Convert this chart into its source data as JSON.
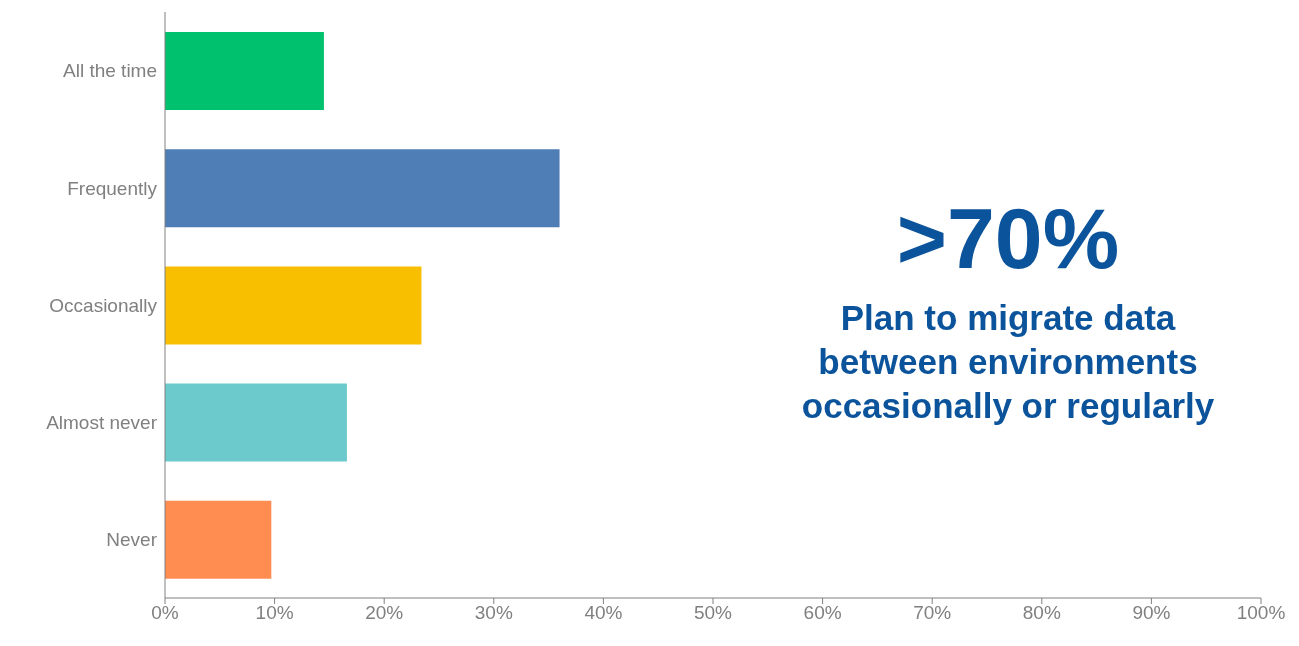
{
  "chart_data": {
    "type": "bar",
    "orientation": "horizontal",
    "categories": [
      "All the time",
      "Frequently",
      "Occasionally",
      "Almost never",
      "Never"
    ],
    "values": [
      14.5,
      36,
      23.4,
      16.6,
      9.7
    ],
    "colors": [
      "#00c16e",
      "#4f7db5",
      "#f7bf00",
      "#6ccacc",
      "#ff8c50"
    ],
    "xlim": [
      0,
      100
    ],
    "xticks": [
      {
        "value": 0,
        "label": "0%"
      },
      {
        "value": 10,
        "label": "10%"
      },
      {
        "value": 20,
        "label": "20%"
      },
      {
        "value": 30,
        "label": "30%"
      },
      {
        "value": 40,
        "label": "40%"
      },
      {
        "value": 50,
        "label": "50%"
      },
      {
        "value": 60,
        "label": "60%"
      },
      {
        "value": 70,
        "label": "70%"
      },
      {
        "value": 80,
        "label": "80%"
      },
      {
        "value": 90,
        "label": "90%"
      },
      {
        "value": 100,
        "label": "100%"
      }
    ],
    "annotations": [
      ">70%",
      "Plan to migrate data between environments occasionally or regularly"
    ],
    "grid": false,
    "legend": false
  }
}
